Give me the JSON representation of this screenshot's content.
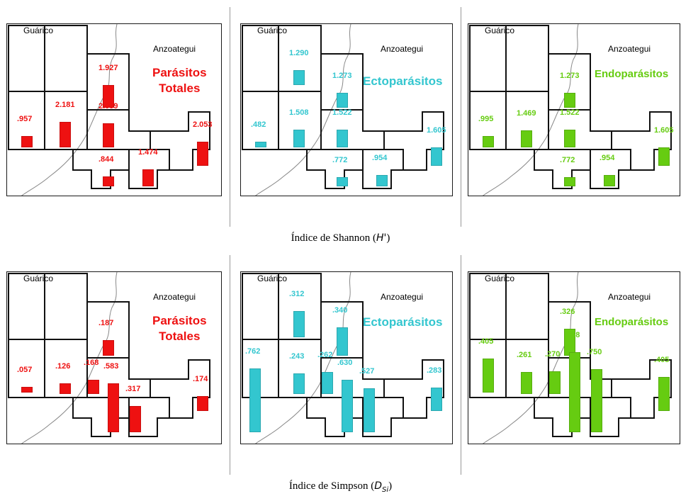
{
  "colors": {
    "totales": "#ee1111",
    "ecto": "#33c6cf",
    "endo": "#66cc11"
  },
  "place_labels": {
    "guarico": "Guárico",
    "anzoategui": "Anzoategui"
  },
  "captions": {
    "shannon": {
      "prefix": "Índice de Shannon (",
      "symbol": "H'",
      "suffix": ")"
    },
    "simpson": {
      "prefix": "Índice de Simpson (",
      "symbol": "D",
      "sub": "Si",
      "suffix": ")"
    }
  },
  "panels": [
    {
      "title": [
        "Parásitos",
        "Totales"
      ],
      "color": "totales",
      "index": "shannon",
      "values": {
        "p1": null,
        "p2": null,
        "p3": 1.927,
        "p4": 0.957,
        "p5": 2.181,
        "p6": 2.059,
        "p7": 0.844,
        "p8": 1.474,
        "p9": 2.053
      },
      "labels": {
        "p3": "1.927",
        "p4": ".957",
        "p5": "2.181",
        "p6": "2.059",
        "p7": ".844",
        "p8": "1.474",
        "p9": "2.053"
      }
    },
    {
      "title": [
        "Ectoparásitos"
      ],
      "color": "ecto",
      "index": "shannon",
      "values": {
        "p1": null,
        "p2": 1.29,
        "p3": 1.273,
        "p4": 0.482,
        "p5": 1.508,
        "p6": 1.522,
        "p7": 0.772,
        "p8": 0.954,
        "p9": 1.605
      },
      "labels": {
        "p2": "1.290",
        "p3": "1.273",
        "p4": ".482",
        "p5": "1.508",
        "p6": "1.522",
        "p7": ".772",
        "p8": ".954",
        "p9": "1.605"
      }
    },
    {
      "title": [
        "Endoparásitos"
      ],
      "color": "endo",
      "index": "shannon",
      "values": {
        "p1": null,
        "p2": null,
        "p3": 1.273,
        "p4": 0.995,
        "p5": 1.469,
        "p6": 1.522,
        "p7": 0.772,
        "p8": 0.954,
        "p9": 1.605
      },
      "labels": {
        "p3": "1.273",
        "p4": ".995",
        "p5": "1.469",
        "p6": "1.522",
        "p7": ".772",
        "p8": ".954",
        "p9": "1.605"
      }
    },
    {
      "title": [
        "Parásitos",
        "Totales"
      ],
      "color": "totales",
      "index": "simpson",
      "values": {
        "p1": null,
        "p2": null,
        "p3": 0.187,
        "p4": 0.057,
        "p5": 0.126,
        "p6": 0.168,
        "p7": 0.583,
        "p8": 0.317,
        "p9": 0.174
      },
      "labels": {
        "p3": ".187",
        "p4": ".057",
        "p5": ".126",
        "p6": ".168",
        "p7": ".583",
        "p8": ".317",
        "p9": ".174"
      }
    },
    {
      "title": [
        "Ectoparásitos"
      ],
      "color": "ecto",
      "index": "simpson",
      "values": {
        "p1": 0.762,
        "p2": 0.312,
        "p3": 0.34,
        "p4": null,
        "p5": 0.243,
        "p6": 0.262,
        "p7": 0.63,
        "p8": 0.527,
        "p9": 0.283
      },
      "labels": {
        "p1": ".762",
        "p2": ".312",
        "p3": ".340",
        "p5": ".243",
        "p6": ".262",
        "p7": ".630",
        "p8": ".527",
        "p9": ".283"
      }
    },
    {
      "title": [
        "Endoparásitos"
      ],
      "color": "endo",
      "index": "simpson",
      "values": {
        "p1": null,
        "p2": null,
        "p3": 0.326,
        "p4": 0.405,
        "p5": 0.261,
        "p6": 0.27,
        "p7": 0.958,
        "p8": 0.75,
        "p9": 0.405
      },
      "labels": {
        "p3": ".326",
        "p4": ".405",
        "p5": ".261",
        "p6": ".270",
        "p7": ".958",
        "p8": ".750",
        "p9": ".405"
      }
    }
  ]
}
